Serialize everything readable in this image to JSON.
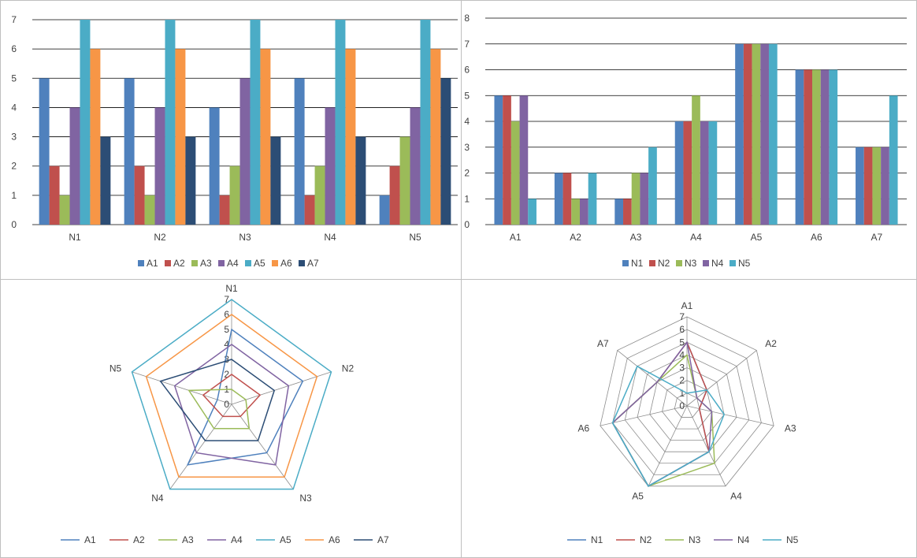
{
  "chart_data": [
    {
      "type": "bar",
      "title": "",
      "categories": [
        "N1",
        "N2",
        "N3",
        "N4",
        "N5"
      ],
      "ylim": [
        0,
        7
      ],
      "yticks": [
        "0",
        "1",
        "2",
        "3",
        "4",
        "5",
        "6",
        "7"
      ],
      "grid": true,
      "legend": "bottom",
      "series": [
        {
          "name": "A1",
          "color": "#4f81bd",
          "values": [
            5,
            5,
            4,
            5,
            1
          ]
        },
        {
          "name": "A2",
          "color": "#c0504d",
          "values": [
            2,
            2,
            1,
            1,
            2
          ]
        },
        {
          "name": "A3",
          "color": "#9bbb59",
          "values": [
            1,
            1,
            2,
            2,
            3
          ]
        },
        {
          "name": "A4",
          "color": "#8064a2",
          "values": [
            4,
            4,
            5,
            4,
            4
          ]
        },
        {
          "name": "A5",
          "color": "#4bacc6",
          "values": [
            7,
            7,
            7,
            7,
            7
          ]
        },
        {
          "name": "A6",
          "color": "#f79646",
          "values": [
            6,
            6,
            6,
            6,
            6
          ]
        },
        {
          "name": "A7",
          "color": "#2c4d75",
          "values": [
            3,
            3,
            3,
            3,
            5
          ]
        }
      ]
    },
    {
      "type": "bar",
      "title": "",
      "categories": [
        "A1",
        "A2",
        "A3",
        "A4",
        "A5",
        "A6",
        "A7"
      ],
      "ylim": [
        0,
        8
      ],
      "yticks": [
        "0",
        "1",
        "2",
        "3",
        "4",
        "5",
        "6",
        "7",
        "8"
      ],
      "grid": true,
      "legend": "bottom",
      "series": [
        {
          "name": "N1",
          "color": "#4f81bd",
          "values": [
            5,
            2,
            1,
            4,
            7,
            6,
            3
          ]
        },
        {
          "name": "N2",
          "color": "#c0504d",
          "values": [
            5,
            2,
            1,
            4,
            7,
            6,
            3
          ]
        },
        {
          "name": "N3",
          "color": "#9bbb59",
          "values": [
            4,
            1,
            2,
            5,
            7,
            6,
            3
          ]
        },
        {
          "name": "N4",
          "color": "#8064a2",
          "values": [
            5,
            1,
            2,
            4,
            7,
            6,
            3
          ]
        },
        {
          "name": "N5",
          "color": "#4bacc6",
          "values": [
            1,
            2,
            3,
            4,
            7,
            6,
            5
          ]
        }
      ]
    },
    {
      "type": "radar",
      "title": "",
      "categories": [
        "N1",
        "N2",
        "N3",
        "N4",
        "N5"
      ],
      "rlim": [
        0,
        7
      ],
      "rticks": [
        "0",
        "1",
        "2",
        "3",
        "4",
        "5",
        "6",
        "7"
      ],
      "grid": false,
      "legend": "bottom",
      "series": [
        {
          "name": "A1",
          "color": "#4f81bd",
          "values": [
            5,
            5,
            4,
            5,
            1
          ]
        },
        {
          "name": "A2",
          "color": "#c0504d",
          "values": [
            2,
            2,
            1,
            1,
            2
          ]
        },
        {
          "name": "A3",
          "color": "#9bbb59",
          "values": [
            1,
            1,
            2,
            2,
            3
          ]
        },
        {
          "name": "A4",
          "color": "#8064a2",
          "values": [
            4,
            4,
            5,
            4,
            4
          ]
        },
        {
          "name": "A5",
          "color": "#4bacc6",
          "values": [
            7,
            7,
            7,
            7,
            7
          ]
        },
        {
          "name": "A6",
          "color": "#f79646",
          "values": [
            6,
            6,
            6,
            6,
            6
          ]
        },
        {
          "name": "A7",
          "color": "#2c4d75",
          "values": [
            3,
            3,
            3,
            3,
            5
          ]
        }
      ]
    },
    {
      "type": "radar",
      "title": "",
      "categories": [
        "A1",
        "A2",
        "A3",
        "A4",
        "A5",
        "A6",
        "A7"
      ],
      "rlim": [
        0,
        7
      ],
      "rticks": [
        "0",
        "1",
        "2",
        "3",
        "4",
        "5",
        "6",
        "7"
      ],
      "grid": true,
      "legend": "bottom",
      "series": [
        {
          "name": "N1",
          "color": "#4f81bd",
          "values": [
            5,
            2,
            1,
            4,
            7,
            6,
            3
          ]
        },
        {
          "name": "N2",
          "color": "#c0504d",
          "values": [
            5,
            2,
            1,
            4,
            7,
            6,
            3
          ]
        },
        {
          "name": "N3",
          "color": "#9bbb59",
          "values": [
            4,
            1,
            2,
            5,
            7,
            6,
            3
          ]
        },
        {
          "name": "N4",
          "color": "#8064a2",
          "values": [
            5,
            1,
            2,
            4,
            7,
            6,
            3
          ]
        },
        {
          "name": "N5",
          "color": "#4bacc6",
          "values": [
            1,
            2,
            3,
            4,
            7,
            6,
            5
          ]
        }
      ]
    }
  ]
}
